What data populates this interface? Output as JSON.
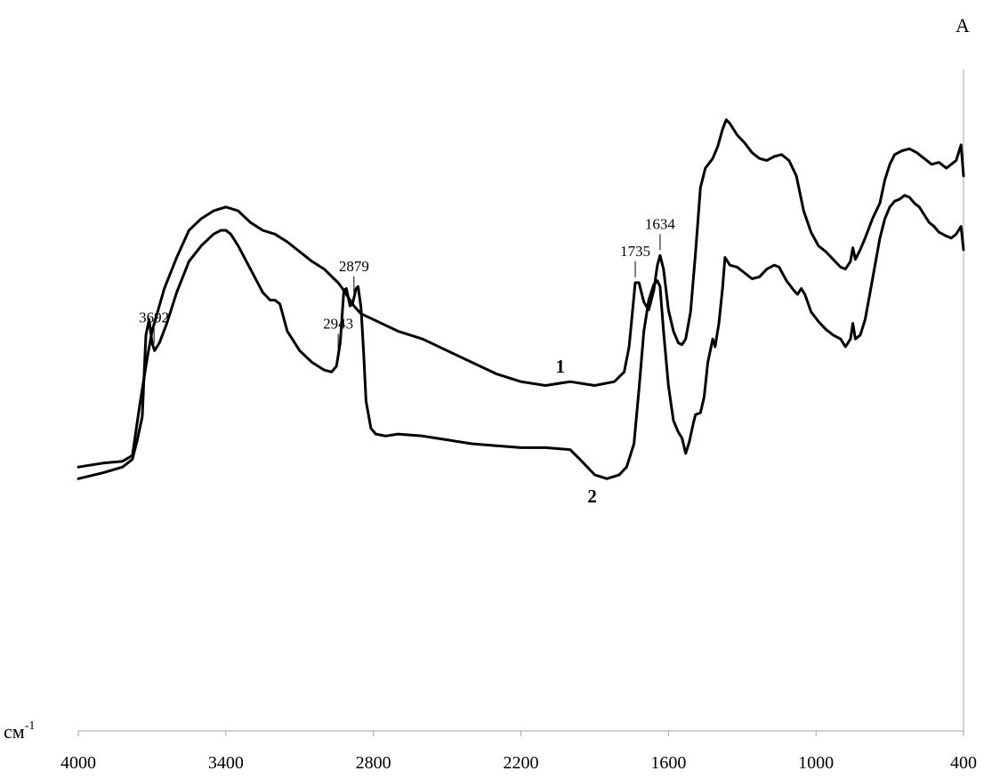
{
  "chart_data": {
    "type": "line",
    "ylabel": "A",
    "xlabel": "см",
    "xlabel_sup": "-1",
    "xlim": [
      4000,
      400
    ],
    "x_reversed": true,
    "x_ticks": [
      4000,
      3400,
      2800,
      2200,
      1600,
      1000,
      400
    ],
    "grid": false,
    "series": [
      {
        "name": "1",
        "points": [
          [
            4000,
            0.1
          ],
          [
            3900,
            0.11
          ],
          [
            3820,
            0.115
          ],
          [
            3780,
            0.13
          ],
          [
            3750,
            0.26
          ],
          [
            3720,
            0.38
          ],
          [
            3700,
            0.45
          ],
          [
            3650,
            0.56
          ],
          [
            3600,
            0.64
          ],
          [
            3550,
            0.71
          ],
          [
            3500,
            0.74
          ],
          [
            3450,
            0.76
          ],
          [
            3400,
            0.77
          ],
          [
            3350,
            0.76
          ],
          [
            3300,
            0.73
          ],
          [
            3250,
            0.71
          ],
          [
            3200,
            0.7
          ],
          [
            3150,
            0.68
          ],
          [
            3100,
            0.655
          ],
          [
            3050,
            0.63
          ],
          [
            3000,
            0.61
          ],
          [
            2960,
            0.585
          ],
          [
            2943,
            0.575
          ],
          [
            2920,
            0.555
          ],
          [
            2900,
            0.535
          ],
          [
            2879,
            0.515
          ],
          [
            2850,
            0.495
          ],
          [
            2800,
            0.48
          ],
          [
            2700,
            0.45
          ],
          [
            2600,
            0.43
          ],
          [
            2500,
            0.4
          ],
          [
            2400,
            0.37
          ],
          [
            2300,
            0.34
          ],
          [
            2200,
            0.32
          ],
          [
            2100,
            0.31
          ],
          [
            2000,
            0.32
          ],
          [
            1900,
            0.31
          ],
          [
            1820,
            0.32
          ],
          [
            1780,
            0.345
          ],
          [
            1760,
            0.41
          ],
          [
            1745,
            0.51
          ],
          [
            1735,
            0.575
          ],
          [
            1720,
            0.575
          ],
          [
            1700,
            0.525
          ],
          [
            1680,
            0.505
          ],
          [
            1660,
            0.555
          ],
          [
            1645,
            0.62
          ],
          [
            1634,
            0.645
          ],
          [
            1620,
            0.61
          ],
          [
            1600,
            0.505
          ],
          [
            1580,
            0.45
          ],
          [
            1560,
            0.42
          ],
          [
            1545,
            0.415
          ],
          [
            1530,
            0.43
          ],
          [
            1510,
            0.5
          ],
          [
            1490,
            0.65
          ],
          [
            1470,
            0.82
          ],
          [
            1450,
            0.87
          ],
          [
            1420,
            0.895
          ],
          [
            1400,
            0.925
          ],
          [
            1380,
            0.97
          ],
          [
            1365,
            0.995
          ],
          [
            1350,
            0.985
          ],
          [
            1320,
            0.955
          ],
          [
            1290,
            0.935
          ],
          [
            1260,
            0.91
          ],
          [
            1230,
            0.895
          ],
          [
            1200,
            0.89
          ],
          [
            1170,
            0.9
          ],
          [
            1140,
            0.905
          ],
          [
            1110,
            0.89
          ],
          [
            1080,
            0.85
          ],
          [
            1050,
            0.76
          ],
          [
            1020,
            0.705
          ],
          [
            990,
            0.67
          ],
          [
            960,
            0.655
          ],
          [
            930,
            0.635
          ],
          [
            900,
            0.615
          ],
          [
            880,
            0.61
          ],
          [
            860,
            0.63
          ],
          [
            850,
            0.665
          ],
          [
            840,
            0.635
          ],
          [
            820,
            0.66
          ],
          [
            800,
            0.69
          ],
          [
            770,
            0.74
          ],
          [
            740,
            0.78
          ],
          [
            720,
            0.84
          ],
          [
            700,
            0.88
          ],
          [
            680,
            0.905
          ],
          [
            650,
            0.915
          ],
          [
            620,
            0.92
          ],
          [
            590,
            0.91
          ],
          [
            560,
            0.895
          ],
          [
            530,
            0.88
          ],
          [
            500,
            0.885
          ],
          [
            470,
            0.87
          ],
          [
            450,
            0.88
          ],
          [
            430,
            0.89
          ],
          [
            410,
            0.93
          ],
          [
            400,
            0.85
          ]
        ]
      },
      {
        "name": "2",
        "points": [
          [
            4000,
            0.07
          ],
          [
            3900,
            0.085
          ],
          [
            3820,
            0.1
          ],
          [
            3780,
            0.12
          ],
          [
            3760,
            0.17
          ],
          [
            3740,
            0.23
          ],
          [
            3725,
            0.44
          ],
          [
            3712,
            0.48
          ],
          [
            3700,
            0.42
          ],
          [
            3690,
            0.4
          ],
          [
            3670,
            0.42
          ],
          [
            3640,
            0.47
          ],
          [
            3600,
            0.55
          ],
          [
            3550,
            0.63
          ],
          [
            3500,
            0.67
          ],
          [
            3450,
            0.7
          ],
          [
            3420,
            0.71
          ],
          [
            3400,
            0.71
          ],
          [
            3380,
            0.7
          ],
          [
            3350,
            0.67
          ],
          [
            3300,
            0.61
          ],
          [
            3250,
            0.55
          ],
          [
            3220,
            0.53
          ],
          [
            3200,
            0.53
          ],
          [
            3180,
            0.52
          ],
          [
            3150,
            0.45
          ],
          [
            3100,
            0.4
          ],
          [
            3050,
            0.37
          ],
          [
            3000,
            0.35
          ],
          [
            2970,
            0.345
          ],
          [
            2950,
            0.36
          ],
          [
            2935,
            0.42
          ],
          [
            2920,
            0.555
          ],
          [
            2910,
            0.56
          ],
          [
            2895,
            0.515
          ],
          [
            2885,
            0.52
          ],
          [
            2870,
            0.56
          ],
          [
            2862,
            0.565
          ],
          [
            2850,
            0.51
          ],
          [
            2840,
            0.4
          ],
          [
            2830,
            0.27
          ],
          [
            2810,
            0.2
          ],
          [
            2790,
            0.185
          ],
          [
            2750,
            0.18
          ],
          [
            2700,
            0.185
          ],
          [
            2600,
            0.18
          ],
          [
            2500,
            0.17
          ],
          [
            2400,
            0.16
          ],
          [
            2300,
            0.155
          ],
          [
            2200,
            0.15
          ],
          [
            2100,
            0.15
          ],
          [
            2000,
            0.145
          ],
          [
            1960,
            0.12
          ],
          [
            1900,
            0.08
          ],
          [
            1850,
            0.07
          ],
          [
            1800,
            0.08
          ],
          [
            1770,
            0.1
          ],
          [
            1740,
            0.16
          ],
          [
            1720,
            0.3
          ],
          [
            1700,
            0.45
          ],
          [
            1680,
            0.53
          ],
          [
            1660,
            0.57
          ],
          [
            1645,
            0.58
          ],
          [
            1634,
            0.565
          ],
          [
            1620,
            0.45
          ],
          [
            1600,
            0.31
          ],
          [
            1580,
            0.22
          ],
          [
            1560,
            0.19
          ],
          [
            1545,
            0.175
          ],
          [
            1530,
            0.135
          ],
          [
            1515,
            0.165
          ],
          [
            1500,
            0.21
          ],
          [
            1490,
            0.235
          ],
          [
            1470,
            0.24
          ],
          [
            1455,
            0.28
          ],
          [
            1440,
            0.37
          ],
          [
            1420,
            0.43
          ],
          [
            1410,
            0.41
          ],
          [
            1395,
            0.47
          ],
          [
            1380,
            0.56
          ],
          [
            1370,
            0.64
          ],
          [
            1350,
            0.62
          ],
          [
            1320,
            0.615
          ],
          [
            1290,
            0.6
          ],
          [
            1260,
            0.585
          ],
          [
            1230,
            0.59
          ],
          [
            1200,
            0.61
          ],
          [
            1170,
            0.62
          ],
          [
            1150,
            0.615
          ],
          [
            1120,
            0.58
          ],
          [
            1090,
            0.555
          ],
          [
            1075,
            0.545
          ],
          [
            1060,
            0.56
          ],
          [
            1045,
            0.545
          ],
          [
            1020,
            0.5
          ],
          [
            990,
            0.475
          ],
          [
            960,
            0.455
          ],
          [
            930,
            0.44
          ],
          [
            900,
            0.43
          ],
          [
            880,
            0.41
          ],
          [
            860,
            0.43
          ],
          [
            850,
            0.47
          ],
          [
            840,
            0.43
          ],
          [
            820,
            0.44
          ],
          [
            800,
            0.48
          ],
          [
            780,
            0.55
          ],
          [
            760,
            0.62
          ],
          [
            740,
            0.69
          ],
          [
            720,
            0.74
          ],
          [
            700,
            0.77
          ],
          [
            680,
            0.785
          ],
          [
            660,
            0.79
          ],
          [
            640,
            0.8
          ],
          [
            620,
            0.795
          ],
          [
            600,
            0.78
          ],
          [
            580,
            0.77
          ],
          [
            560,
            0.75
          ],
          [
            540,
            0.73
          ],
          [
            520,
            0.72
          ],
          [
            500,
            0.705
          ],
          [
            470,
            0.695
          ],
          [
            450,
            0.69
          ],
          [
            430,
            0.7
          ],
          [
            410,
            0.72
          ],
          [
            400,
            0.66
          ]
        ]
      }
    ],
    "annotations": [
      {
        "label": "3692",
        "x": 3692,
        "series": 1
      },
      {
        "label": "2943",
        "x": 2943,
        "series": 1
      },
      {
        "label": "2879",
        "x": 2879,
        "series": 1
      },
      {
        "label": "1735",
        "x": 1735,
        "series": 0
      },
      {
        "label": "1634",
        "x": 1634,
        "series": 0
      }
    ],
    "series_labels": [
      {
        "label": "1",
        "series": 0,
        "x": 2040
      },
      {
        "label": "2",
        "series": 1,
        "x": 1910
      }
    ]
  }
}
